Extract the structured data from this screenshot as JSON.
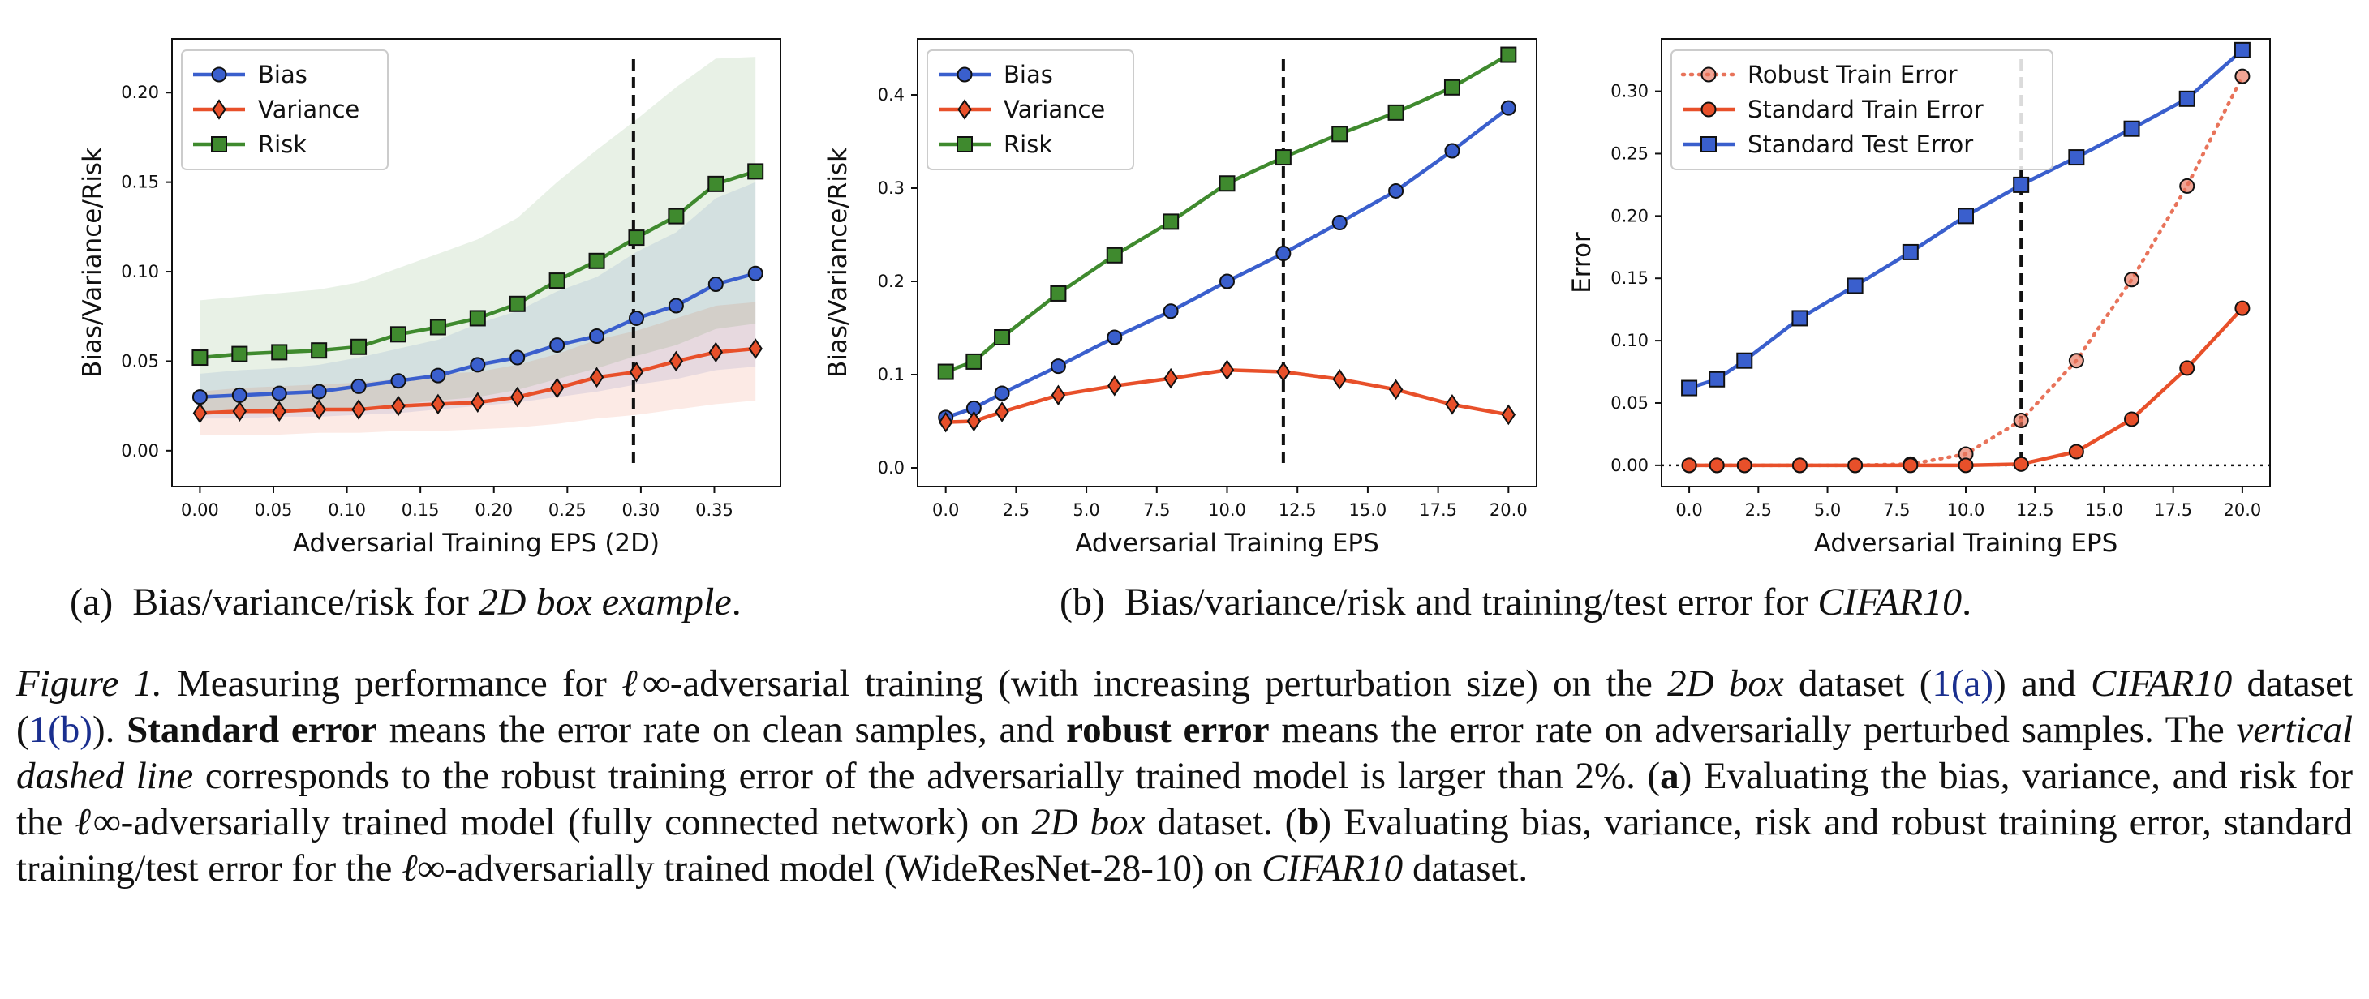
{
  "chart_data": [
    {
      "type": "line",
      "xlabel": "Adversarial Training EPS (2D)",
      "ylabel": "Bias/Variance/Risk",
      "xlim": [
        -0.019,
        0.395
      ],
      "ylim": [
        -0.02,
        0.23
      ],
      "xticks": [
        "0.00",
        "0.05",
        "0.10",
        "0.15",
        "0.20",
        "0.25",
        "0.30",
        "0.35"
      ],
      "xtick_values": [
        0,
        0.05,
        0.1,
        0.15,
        0.2,
        0.25,
        0.3,
        0.35
      ],
      "yticks": [
        "0.00",
        "0.05",
        "0.10",
        "0.15",
        "0.20"
      ],
      "ytick_values": [
        0,
        0.05,
        0.1,
        0.15,
        0.2
      ],
      "legend": "top-left",
      "vline_x": 0.295,
      "x": [
        0.0,
        0.027,
        0.054,
        0.081,
        0.108,
        0.135,
        0.162,
        0.189,
        0.216,
        0.243,
        0.27,
        0.297,
        0.324,
        0.351,
        0.378
      ],
      "series": [
        {
          "name": "Bias",
          "color": "#3a5fcd",
          "marker": "circle",
          "values": [
            0.03,
            0.031,
            0.032,
            0.033,
            0.036,
            0.039,
            0.042,
            0.048,
            0.052,
            0.059,
            0.064,
            0.074,
            0.081,
            0.093,
            0.099
          ],
          "band_low": [
            0.018,
            0.018,
            0.019,
            0.019,
            0.02,
            0.021,
            0.023,
            0.025,
            0.027,
            0.03,
            0.033,
            0.037,
            0.04,
            0.045,
            0.047
          ],
          "band_high": [
            0.043,
            0.045,
            0.046,
            0.048,
            0.052,
            0.057,
            0.062,
            0.071,
            0.078,
            0.089,
            0.097,
            0.111,
            0.122,
            0.141,
            0.15
          ]
        },
        {
          "name": "Variance",
          "color": "#e8502a",
          "marker": "diamond",
          "values": [
            0.021,
            0.022,
            0.022,
            0.023,
            0.023,
            0.025,
            0.026,
            0.027,
            0.03,
            0.035,
            0.041,
            0.044,
            0.05,
            0.055,
            0.057
          ],
          "band_low": [
            0.009,
            0.009,
            0.009,
            0.01,
            0.01,
            0.011,
            0.011,
            0.012,
            0.013,
            0.015,
            0.018,
            0.02,
            0.023,
            0.026,
            0.028
          ],
          "band_high": [
            0.033,
            0.035,
            0.036,
            0.037,
            0.038,
            0.04,
            0.043,
            0.044,
            0.048,
            0.054,
            0.062,
            0.067,
            0.074,
            0.081,
            0.083
          ]
        },
        {
          "name": "Risk",
          "color": "#3f8a2e",
          "marker": "square",
          "values": [
            0.052,
            0.054,
            0.055,
            0.056,
            0.058,
            0.065,
            0.069,
            0.074,
            0.082,
            0.095,
            0.106,
            0.119,
            0.131,
            0.149,
            0.156
          ],
          "band_low": [
            0.02,
            0.021,
            0.021,
            0.022,
            0.023,
            0.026,
            0.028,
            0.03,
            0.034,
            0.04,
            0.046,
            0.053,
            0.059,
            0.068,
            0.071
          ],
          "band_high": [
            0.084,
            0.086,
            0.088,
            0.09,
            0.094,
            0.102,
            0.11,
            0.118,
            0.13,
            0.15,
            0.168,
            0.185,
            0.203,
            0.219,
            0.22
          ]
        }
      ]
    },
    {
      "type": "line",
      "xlabel": "Adversarial Training EPS",
      "ylabel": "Bias/Variance/Risk",
      "xlim": [
        -1.0,
        21.0
      ],
      "ylim": [
        -0.02,
        0.46
      ],
      "xticks": [
        "0.0",
        "2.5",
        "5.0",
        "7.5",
        "10.0",
        "12.5",
        "15.0",
        "17.5",
        "20.0"
      ],
      "xtick_values": [
        0,
        2.5,
        5,
        7.5,
        10,
        12.5,
        15,
        17.5,
        20
      ],
      "yticks": [
        "0.0",
        "0.1",
        "0.2",
        "0.3",
        "0.4"
      ],
      "ytick_values": [
        0,
        0.1,
        0.2,
        0.3,
        0.4
      ],
      "legend": "top-left",
      "vline_x": 12,
      "x": [
        0,
        1,
        2,
        4,
        6,
        8,
        10,
        12,
        14,
        16,
        18,
        20
      ],
      "series": [
        {
          "name": "Bias",
          "color": "#3a5fcd",
          "marker": "circle",
          "values": [
            0.054,
            0.064,
            0.08,
            0.109,
            0.14,
            0.168,
            0.2,
            0.23,
            0.263,
            0.297,
            0.34,
            0.386
          ]
        },
        {
          "name": "Variance",
          "color": "#e8502a",
          "marker": "diamond",
          "values": [
            0.049,
            0.05,
            0.06,
            0.078,
            0.088,
            0.096,
            0.105,
            0.103,
            0.095,
            0.084,
            0.068,
            0.057
          ]
        },
        {
          "name": "Risk",
          "color": "#3f8a2e",
          "marker": "square",
          "values": [
            0.103,
            0.114,
            0.14,
            0.187,
            0.228,
            0.264,
            0.305,
            0.333,
            0.358,
            0.381,
            0.408,
            0.443
          ]
        }
      ]
    },
    {
      "type": "line",
      "xlabel": "Adversarial Training EPS",
      "ylabel": "Error",
      "xlim": [
        -1.0,
        21.0
      ],
      "ylim": [
        -0.017,
        0.342
      ],
      "xticks": [
        "0.0",
        "2.5",
        "5.0",
        "7.5",
        "10.0",
        "12.5",
        "15.0",
        "17.5",
        "20.0"
      ],
      "xtick_values": [
        0,
        2.5,
        5,
        7.5,
        10,
        12.5,
        15,
        17.5,
        20
      ],
      "yticks": [
        "0.00",
        "0.05",
        "0.10",
        "0.15",
        "0.20",
        "0.25",
        "0.30"
      ],
      "ytick_values": [
        0,
        0.05,
        0.1,
        0.15,
        0.2,
        0.25,
        0.3
      ],
      "legend": "top-left",
      "vline_x": 12,
      "hline_y": 0,
      "x": [
        0,
        1,
        2,
        4,
        6,
        8,
        10,
        12,
        14,
        16,
        18,
        20
      ],
      "series": [
        {
          "name": "Robust Train Error",
          "color": "#e8735a",
          "marker": "circle",
          "style": "dotted",
          "values": [
            0,
            0,
            0,
            0,
            0,
            0.001,
            0.009,
            0.036,
            0.084,
            0.149,
            0.224,
            0.312
          ]
        },
        {
          "name": "Standard Train Error",
          "color": "#e8502a",
          "marker": "circle",
          "style": "solid",
          "values": [
            0,
            0,
            0,
            0,
            0,
            0,
            0,
            0.001,
            0.011,
            0.037,
            0.078,
            0.126
          ]
        },
        {
          "name": "Standard Test Error",
          "color": "#3a5fcd",
          "marker": "square",
          "style": "solid",
          "values": [
            0.062,
            0.069,
            0.084,
            0.118,
            0.144,
            0.171,
            0.2,
            0.225,
            0.247,
            0.27,
            0.294,
            0.333
          ]
        }
      ]
    }
  ],
  "subcaptions": {
    "a_label": "(a)",
    "a_text": "Bias/variance/risk for ",
    "a_italic": "2D box example",
    "a_end": ".",
    "b_label": "(b)",
    "b_text": "Bias/variance/risk and training/test error for ",
    "b_italic": "CIFAR10",
    "b_end": "."
  },
  "caption": {
    "label": "Figure 1.",
    "p1": " Measuring performance for ",
    "linf": "ℓ∞",
    "p2": "-adversarial training (with increasing perturbation size) on the ",
    "box": "2D box",
    "p3": " dataset (",
    "ref_a": "1(a)",
    "p4": ") and ",
    "cifar": "CIFAR10",
    "p5": " dataset (",
    "ref_b": "1(b)",
    "p6": "). ",
    "std_err": "Standard error",
    "p7": " means the error rate on clean samples, and ",
    "rob_err": "robust error",
    "p8": " means the error rate on adversarially perturbed samples. The ",
    "vdl": "vertical dashed line",
    "p9": " corresponds to the robust training error of the adversarially trained model is larger than 2%. (",
    "a": "a",
    "p10": ") Evaluating the bias, variance, and risk for the ",
    "linf2": "ℓ∞",
    "p11": "-adversarially trained model (fully connected network) on ",
    "box2": "2D box",
    "p12": " dataset. (",
    "b": "b",
    "p13": ") Evaluating bias, variance, risk and robust training error, standard training/test error for the ",
    "linf3": "ℓ∞",
    "p14": "-adversarially trained model (WideResNet-28-10) on ",
    "cifar2": "CIFAR10",
    "p15": " dataset."
  }
}
